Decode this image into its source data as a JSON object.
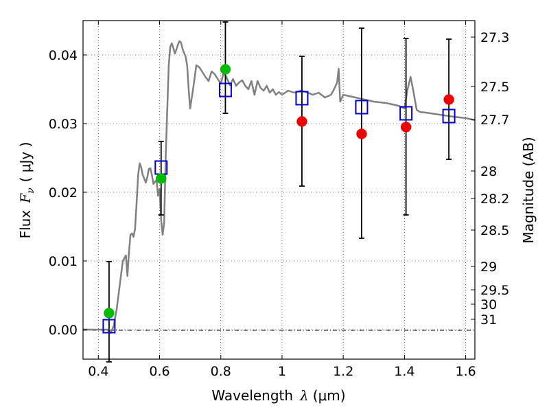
{
  "chart_data": {
    "type": "scatter",
    "title": "",
    "xlabel_text": "Wavelength",
    "xlabel_symbol": "λ",
    "xlabel_unit": "(μm)",
    "ylabel_text": "Flux",
    "ylabel_symbol": "F",
    "ylabel_subscript": "ν",
    "ylabel_unit": "( μJy )",
    "y2label": "Magnitude (AB)",
    "xlim": [
      0.35,
      1.63
    ],
    "ylim": [
      -0.0043,
      0.045
    ],
    "grid": true,
    "x_ticks": [
      {
        "value": 0.4,
        "label": "0.4"
      },
      {
        "value": 0.6,
        "label": "0.6"
      },
      {
        "value": 0.8,
        "label": "0.8"
      },
      {
        "value": 1.0,
        "label": "1"
      },
      {
        "value": 1.2,
        "label": "1.2"
      },
      {
        "value": 1.4,
        "label": "1.4"
      },
      {
        "value": 1.6,
        "label": "1.6"
      }
    ],
    "y_ticks": [
      {
        "value": 0.0,
        "label": "0.00"
      },
      {
        "value": 0.01,
        "label": "0.01"
      },
      {
        "value": 0.02,
        "label": "0.02"
      },
      {
        "value": 0.03,
        "label": "0.03"
      },
      {
        "value": 0.04,
        "label": "0.04"
      }
    ],
    "y2_ticks": [
      {
        "flux": 0.0426,
        "label": "27.3"
      },
      {
        "flux": 0.0354,
        "label": "27.5"
      },
      {
        "flux": 0.0306,
        "label": "27.7"
      },
      {
        "flux": 0.0231,
        "label": "28"
      },
      {
        "flux": 0.0191,
        "label": "28.2"
      },
      {
        "flux": 0.0145,
        "label": "28.5"
      },
      {
        "flux": 0.0092,
        "label": "29"
      },
      {
        "flux": 0.0058,
        "label": "29.5"
      },
      {
        "flux": 0.0037,
        "label": "30"
      },
      {
        "flux": 0.0015,
        "label": "31"
      }
    ],
    "series": [
      {
        "kind": "line",
        "color": "#808080",
        "x": [
          0.35,
          0.43,
          0.44,
          0.45,
          0.46,
          0.47,
          0.48,
          0.49,
          0.495,
          0.5,
          0.505,
          0.51,
          0.515,
          0.52,
          0.525,
          0.53,
          0.535,
          0.54,
          0.545,
          0.55,
          0.555,
          0.56,
          0.565,
          0.57,
          0.575,
          0.58,
          0.585,
          0.59,
          0.595,
          0.6,
          0.605,
          0.61,
          0.615,
          0.62,
          0.625,
          0.63,
          0.635,
          0.64,
          0.645,
          0.65,
          0.655,
          0.66,
          0.665,
          0.67,
          0.675,
          0.68,
          0.685,
          0.69,
          0.695,
          0.7,
          0.71,
          0.72,
          0.73,
          0.74,
          0.75,
          0.76,
          0.77,
          0.78,
          0.79,
          0.8,
          0.81,
          0.82,
          0.83,
          0.84,
          0.85,
          0.86,
          0.87,
          0.88,
          0.89,
          0.9,
          0.91,
          0.92,
          0.93,
          0.94,
          0.95,
          0.96,
          0.97,
          0.98,
          0.99,
          1.0,
          1.02,
          1.04,
          1.06,
          1.08,
          1.1,
          1.12,
          1.14,
          1.16,
          1.17,
          1.18,
          1.185,
          1.19,
          1.2,
          1.22,
          1.24,
          1.26,
          1.28,
          1.3,
          1.32,
          1.34,
          1.36,
          1.38,
          1.4,
          1.41,
          1.42,
          1.43,
          1.44,
          1.45,
          1.47,
          1.5,
          1.53,
          1.56,
          1.6,
          1.63
        ],
        "y": [
          0.0,
          0.0,
          -0.0005,
          0.0005,
          0.003,
          0.0065,
          0.01,
          0.0108,
          0.0078,
          0.0112,
          0.0138,
          0.014,
          0.0135,
          0.0147,
          0.0185,
          0.0225,
          0.0242,
          0.0236,
          0.0225,
          0.022,
          0.0214,
          0.0222,
          0.0234,
          0.0235,
          0.0225,
          0.0212,
          0.0215,
          0.0218,
          0.0195,
          0.0205,
          0.016,
          0.0138,
          0.0155,
          0.025,
          0.032,
          0.0385,
          0.0412,
          0.0417,
          0.041,
          0.0402,
          0.0408,
          0.0415,
          0.042,
          0.0418,
          0.0409,
          0.0403,
          0.0398,
          0.0385,
          0.035,
          0.0322,
          0.0352,
          0.0385,
          0.0382,
          0.0375,
          0.0368,
          0.0362,
          0.0376,
          0.0372,
          0.0365,
          0.0358,
          0.0375,
          0.0366,
          0.0356,
          0.0365,
          0.0355,
          0.036,
          0.0363,
          0.0355,
          0.035,
          0.0362,
          0.0342,
          0.0362,
          0.0352,
          0.0348,
          0.0355,
          0.0345,
          0.035,
          0.0342,
          0.0346,
          0.0342,
          0.0348,
          0.0345,
          0.0348,
          0.0346,
          0.0342,
          0.0345,
          0.0338,
          0.0342,
          0.035,
          0.036,
          0.038,
          0.0332,
          0.0342,
          0.034,
          0.0338,
          0.0336,
          0.0334,
          0.0332,
          0.0331,
          0.033,
          0.0328,
          0.0326,
          0.0322,
          0.035,
          0.0368,
          0.0345,
          0.032,
          0.0317,
          0.0316,
          0.0314,
          0.0312,
          0.031,
          0.0308,
          0.0305
        ]
      },
      {
        "kind": "errorbar",
        "color": "#000000",
        "x": [
          0.435,
          0.605,
          0.815,
          1.065,
          1.26,
          1.405,
          1.545
        ],
        "y_low": [
          -0.0047,
          0.0167,
          0.0315,
          0.0209,
          0.0133,
          0.0167,
          0.0248
        ],
        "y_high": [
          0.0099,
          0.0274,
          0.0448,
          0.0398,
          0.0439,
          0.0424,
          0.0423
        ]
      },
      {
        "kind": "square",
        "color": "#0000cc",
        "x": [
          0.435,
          0.605,
          0.815,
          1.065,
          1.26,
          1.405,
          1.545
        ],
        "y": [
          0.0005,
          0.0236,
          0.0349,
          0.0337,
          0.0324,
          0.0315,
          0.0311
        ]
      },
      {
        "kind": "circle",
        "color": "#00bb00",
        "x": [
          0.435,
          0.605,
          0.815
        ],
        "y": [
          0.0024,
          0.022,
          0.0379
        ]
      },
      {
        "kind": "circle",
        "color": "#ee0000",
        "x": [
          1.065,
          1.26,
          1.405,
          1.545
        ],
        "y": [
          0.0303,
          0.0285,
          0.0295,
          0.0335
        ]
      }
    ]
  }
}
